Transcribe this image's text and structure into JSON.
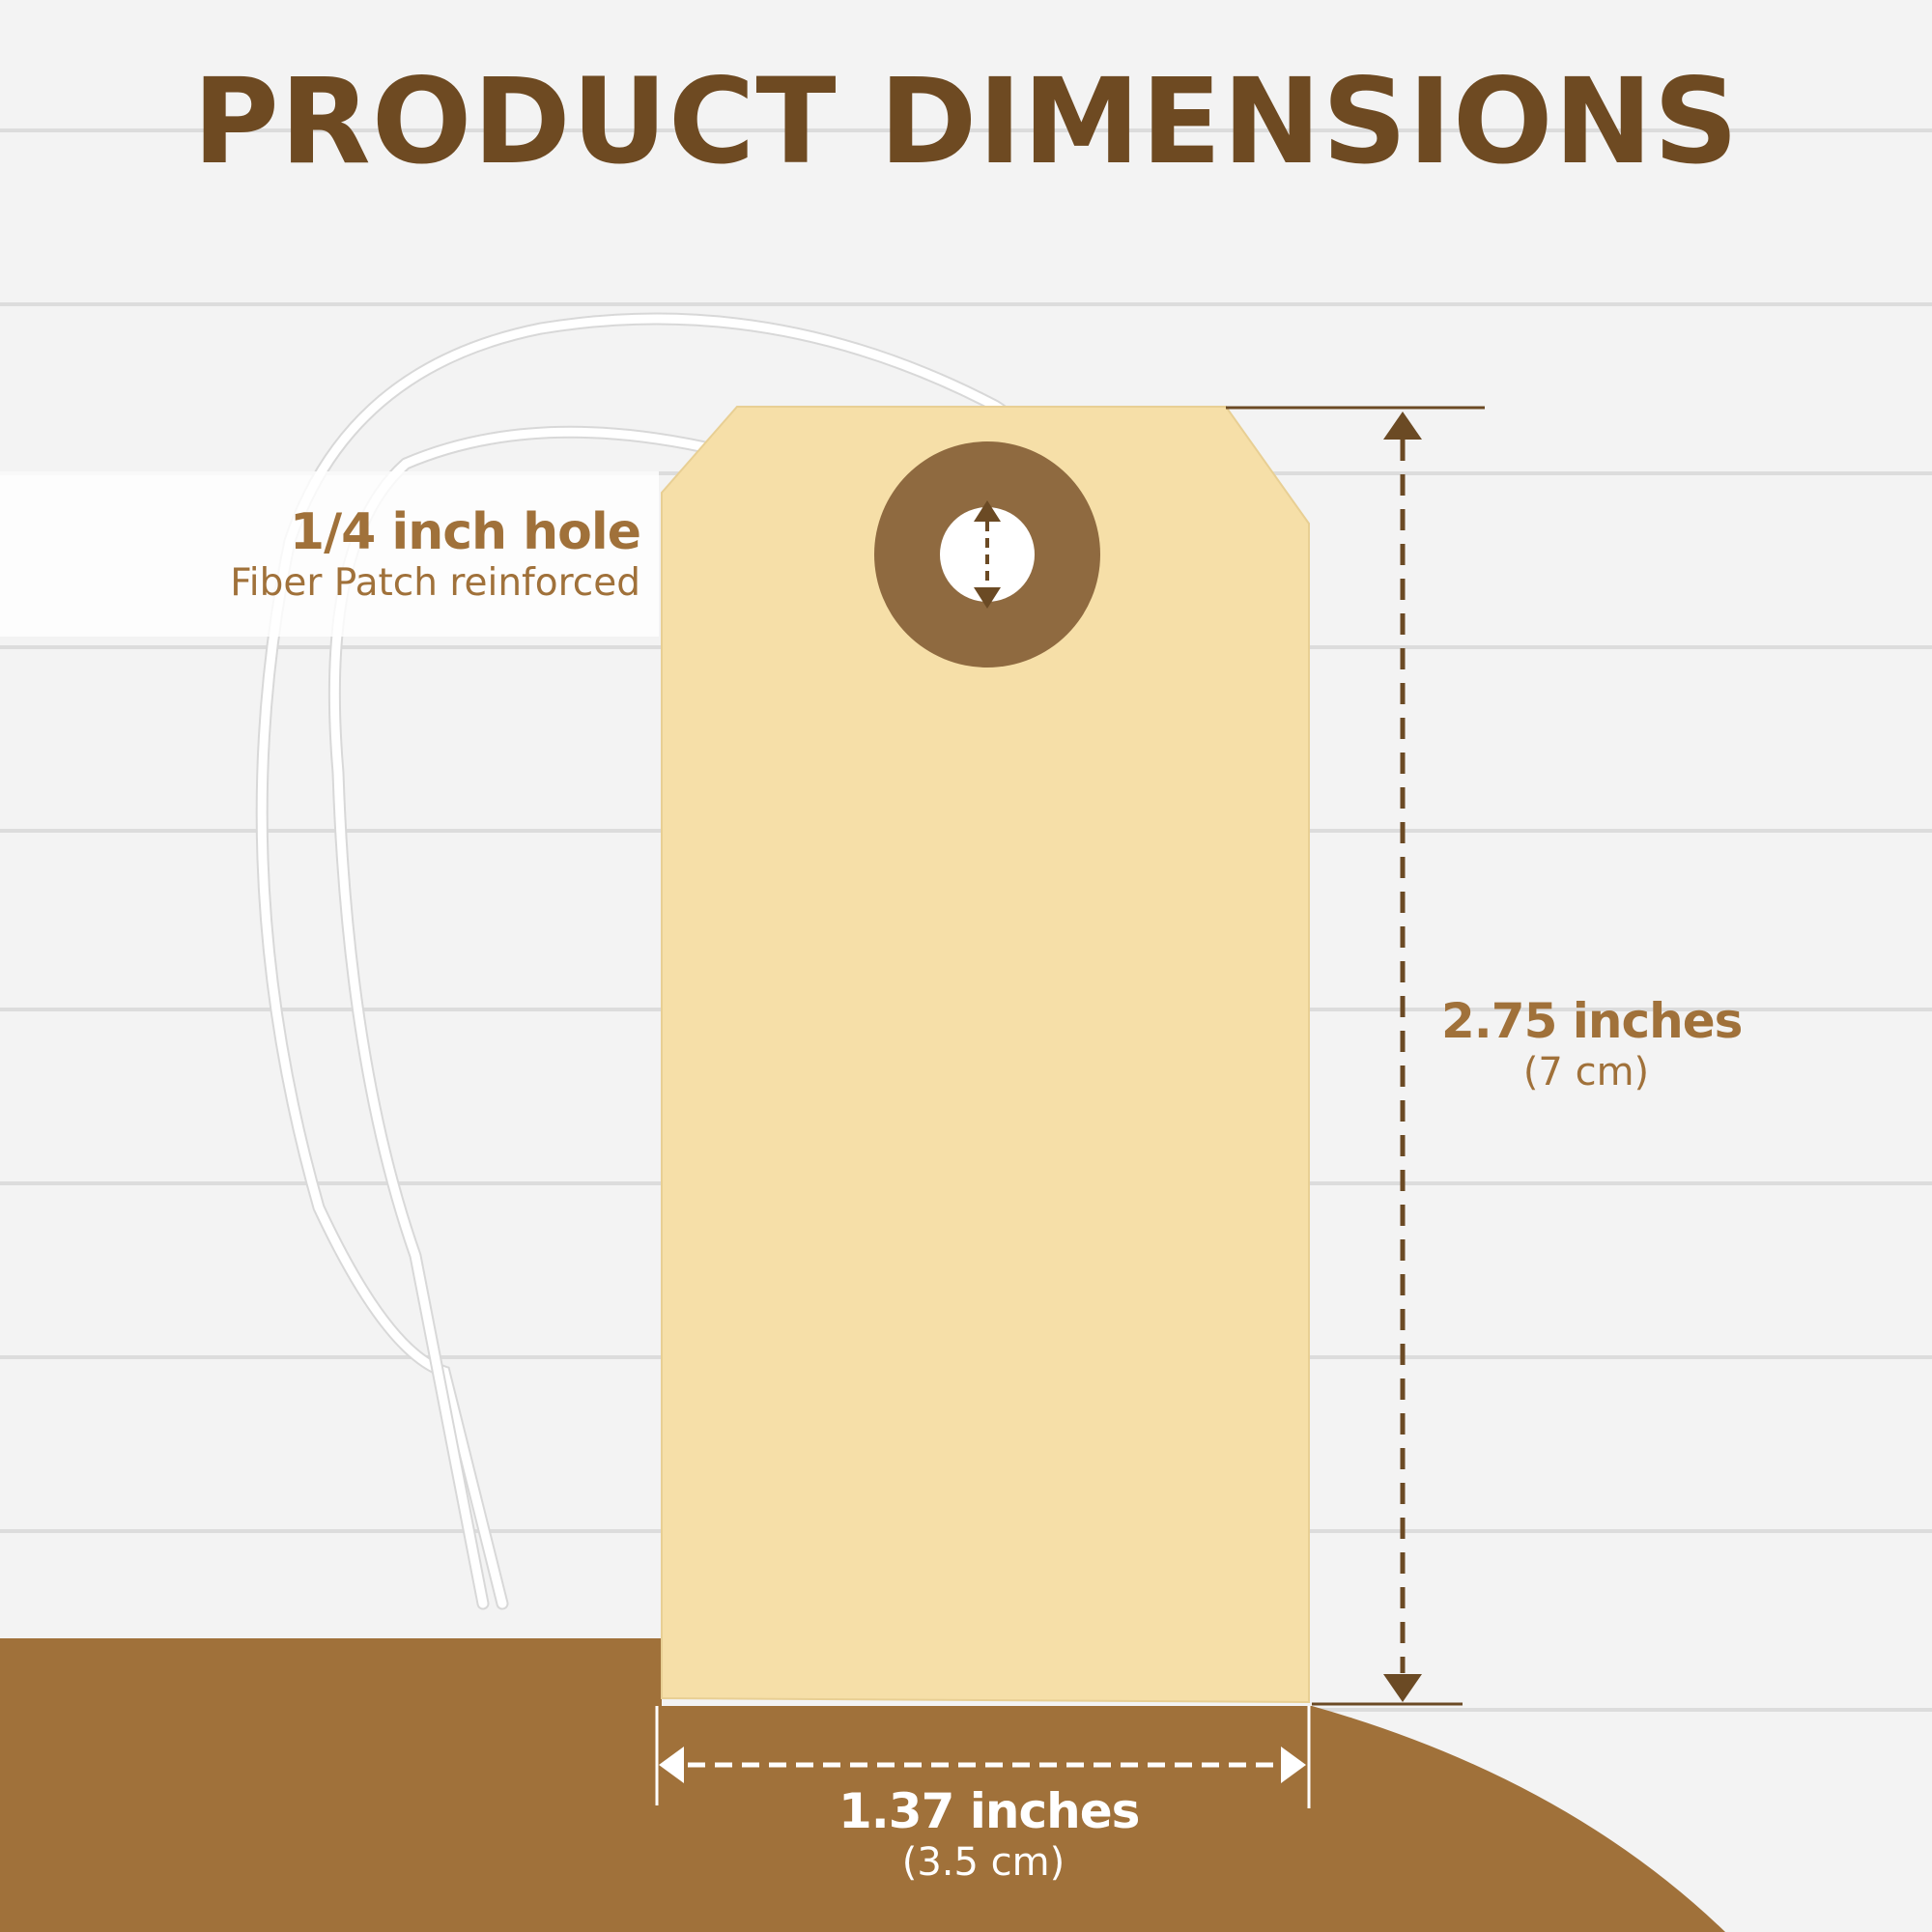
{
  "title": "PRODUCT DIMENSIONS",
  "hole": {
    "size": "1/4 inch hole",
    "detail": "Fiber Patch reinforced"
  },
  "height": {
    "imperial": "2.75 inches",
    "metric": "(7 cm)"
  },
  "width": {
    "imperial": "1.37 inches",
    "metric": "(3.5 cm)"
  },
  "colors": {
    "title": "#6e4a22",
    "accent": "#a0713a",
    "tag": "#f6dfa8",
    "patch": "#8f6a40",
    "dim_line": "#6b4a24"
  }
}
